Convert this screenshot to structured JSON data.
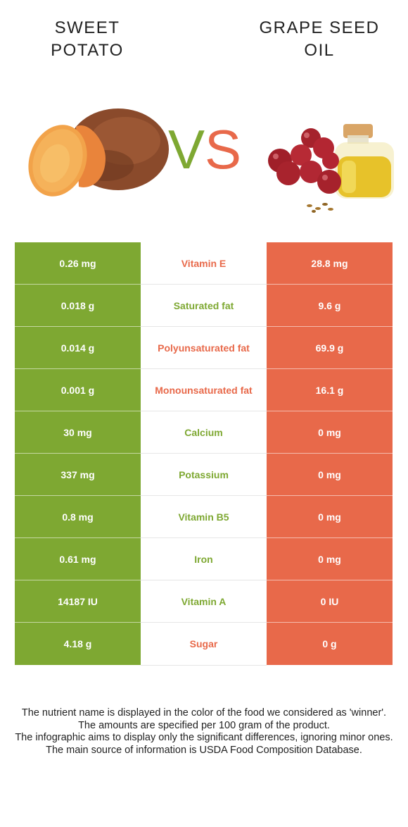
{
  "left_food": {
    "title_line1": "SWEET",
    "title_line2": "POTATO",
    "color": "#7ea832"
  },
  "right_food": {
    "title_line1": "GRAPE SEED",
    "title_line2": "OIL",
    "color": "#e8694a"
  },
  "vs": {
    "v": "V",
    "s": "S"
  },
  "rows": [
    {
      "left": "0.26 mg",
      "nutrient": "Vitamin E",
      "right": "28.8 mg",
      "winner": "right"
    },
    {
      "left": "0.018 g",
      "nutrient": "Saturated fat",
      "right": "9.6 g",
      "winner": "left"
    },
    {
      "left": "0.014 g",
      "nutrient": "Polyunsaturated fat",
      "right": "69.9 g",
      "winner": "right"
    },
    {
      "left": "0.001 g",
      "nutrient": "Monounsaturated fat",
      "right": "16.1 g",
      "winner": "right"
    },
    {
      "left": "30 mg",
      "nutrient": "Calcium",
      "right": "0 mg",
      "winner": "left"
    },
    {
      "left": "337 mg",
      "nutrient": "Potassium",
      "right": "0 mg",
      "winner": "left"
    },
    {
      "left": "0.8 mg",
      "nutrient": "Vitamin B5",
      "right": "0 mg",
      "winner": "left"
    },
    {
      "left": "0.61 mg",
      "nutrient": "Iron",
      "right": "0 mg",
      "winner": "left"
    },
    {
      "left": "14187 IU",
      "nutrient": "Vitamin A",
      "right": "0 IU",
      "winner": "left"
    },
    {
      "left": "4.18 g",
      "nutrient": "Sugar",
      "right": "0 g",
      "winner": "right"
    }
  ],
  "notes": [
    "The nutrient name is displayed in the color of the food we considered as 'winner'.",
    "The amounts are specified per 100 gram of the product.",
    "The infographic aims to display only the significant differences, ignoring minor ones.",
    "The main source of information is USDA Food Composition Database."
  ]
}
